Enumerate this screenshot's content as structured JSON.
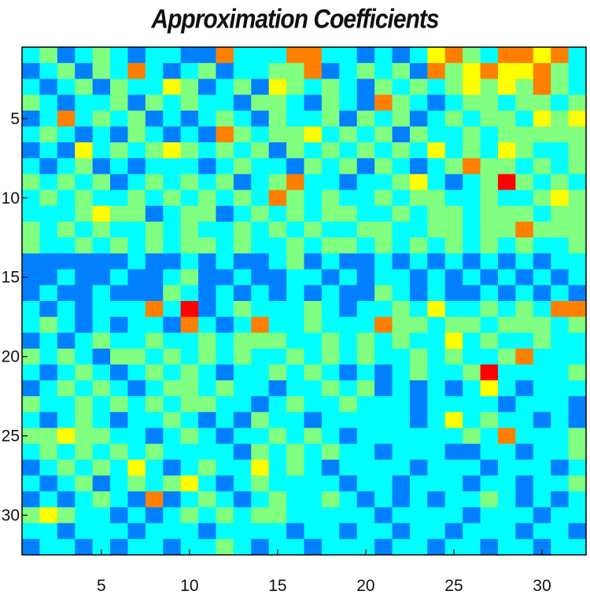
{
  "chart_data": {
    "type": "heatmap",
    "title": "Approximation Coefficients",
    "xlabel": "",
    "ylabel": "",
    "xlim": [
      0.5,
      32.5
    ],
    "ylim": [
      0.5,
      32.5
    ],
    "y_direction": "top-to-bottom",
    "x_ticks": [
      5,
      10,
      15,
      20,
      25,
      30
    ],
    "y_ticks": [
      5,
      10,
      15,
      20,
      25,
      30
    ],
    "colormap": "jet",
    "color_range": [
      0,
      8
    ],
    "grid": false,
    "legend": "none",
    "rows": 32,
    "cols": 32,
    "values": [
      [
        3,
        4,
        2,
        3,
        4,
        3,
        2,
        3,
        3,
        2,
        2,
        6,
        3,
        3,
        3,
        6,
        6,
        3,
        3,
        2,
        3,
        2,
        3,
        5,
        6,
        4,
        3,
        6,
        6,
        5,
        6,
        3
      ],
      [
        2,
        3,
        4,
        2,
        4,
        3,
        6,
        3,
        2,
        3,
        4,
        2,
        3,
        3,
        4,
        4,
        6,
        2,
        3,
        4,
        3,
        4,
        2,
        6,
        4,
        5,
        6,
        5,
        5,
        6,
        4,
        3
      ],
      [
        3,
        2,
        3,
        4,
        2,
        4,
        3,
        3,
        5,
        4,
        2,
        3,
        4,
        2,
        5,
        4,
        3,
        4,
        3,
        2,
        4,
        3,
        4,
        3,
        4,
        5,
        4,
        5,
        4,
        6,
        4,
        3
      ],
      [
        4,
        3,
        2,
        3,
        3,
        4,
        2,
        4,
        3,
        4,
        3,
        3,
        2,
        4,
        4,
        3,
        2,
        4,
        3,
        2,
        6,
        4,
        3,
        2,
        3,
        4,
        4,
        3,
        4,
        4,
        3,
        4
      ],
      [
        2,
        3,
        6,
        3,
        4,
        3,
        4,
        2,
        3,
        2,
        3,
        4,
        3,
        2,
        4,
        3,
        3,
        4,
        2,
        4,
        3,
        4,
        2,
        3,
        4,
        3,
        4,
        4,
        3,
        5,
        4,
        5
      ],
      [
        3,
        4,
        3,
        2,
        3,
        2,
        4,
        3,
        2,
        3,
        2,
        6,
        4,
        3,
        4,
        4,
        5,
        3,
        4,
        3,
        4,
        2,
        4,
        3,
        3,
        4,
        3,
        4,
        4,
        4,
        4,
        4
      ],
      [
        2,
        3,
        2,
        5,
        3,
        4,
        3,
        4,
        5,
        4,
        3,
        4,
        3,
        4,
        2,
        4,
        3,
        4,
        3,
        4,
        3,
        4,
        3,
        5,
        3,
        4,
        3,
        5,
        4,
        3,
        3,
        4
      ],
      [
        3,
        2,
        3,
        4,
        2,
        3,
        2,
        3,
        3,
        3,
        2,
        3,
        4,
        3,
        3,
        2,
        4,
        3,
        4,
        2,
        4,
        3,
        2,
        3,
        4,
        6,
        4,
        4,
        3,
        4,
        3,
        4
      ],
      [
        4,
        3,
        4,
        3,
        4,
        2,
        3,
        4,
        3,
        4,
        3,
        4,
        2,
        3,
        4,
        6,
        3,
        3,
        2,
        3,
        3,
        4,
        5,
        3,
        2,
        3,
        4,
        7,
        4,
        3,
        4,
        3
      ],
      [
        3,
        4,
        3,
        4,
        3,
        3,
        4,
        3,
        4,
        3,
        4,
        3,
        4,
        3,
        6,
        4,
        3,
        4,
        3,
        3,
        4,
        3,
        4,
        4,
        3,
        3,
        4,
        3,
        3,
        4,
        5,
        4
      ],
      [
        3,
        3,
        3,
        4,
        5,
        4,
        4,
        2,
        3,
        4,
        4,
        2,
        3,
        4,
        3,
        4,
        3,
        4,
        4,
        3,
        3,
        4,
        3,
        4,
        4,
        3,
        4,
        4,
        4,
        3,
        4,
        4
      ],
      [
        4,
        3,
        4,
        3,
        4,
        3,
        3,
        4,
        3,
        4,
        3,
        3,
        4,
        3,
        4,
        3,
        4,
        3,
        3,
        4,
        4,
        3,
        3,
        4,
        4,
        3,
        4,
        4,
        6,
        4,
        4,
        4
      ],
      [
        4,
        3,
        3,
        4,
        3,
        4,
        3,
        4,
        3,
        4,
        4,
        3,
        4,
        3,
        3,
        4,
        3,
        4,
        4,
        3,
        4,
        3,
        4,
        3,
        4,
        3,
        4,
        3,
        4,
        3,
        3,
        4
      ],
      [
        2,
        2,
        2,
        2,
        2,
        2,
        3,
        2,
        2,
        3,
        2,
        3,
        2,
        2,
        3,
        4,
        2,
        3,
        2,
        2,
        3,
        2,
        3,
        2,
        3,
        2,
        3,
        2,
        3,
        2,
        3,
        3
      ],
      [
        2,
        2,
        3,
        2,
        2,
        3,
        2,
        2,
        3,
        4,
        2,
        2,
        3,
        2,
        2,
        3,
        3,
        2,
        3,
        2,
        3,
        3,
        2,
        3,
        2,
        3,
        2,
        3,
        2,
        3,
        2,
        3
      ],
      [
        2,
        3,
        2,
        2,
        3,
        2,
        2,
        2,
        4,
        3,
        2,
        3,
        2,
        3,
        2,
        3,
        2,
        3,
        2,
        2,
        4,
        3,
        2,
        3,
        2,
        2,
        3,
        2,
        3,
        2,
        3,
        2
      ],
      [
        3,
        2,
        3,
        2,
        3,
        3,
        3,
        6,
        3,
        7,
        2,
        3,
        4,
        3,
        3,
        3,
        4,
        3,
        2,
        3,
        3,
        4,
        3,
        5,
        3,
        3,
        4,
        3,
        4,
        3,
        6,
        6
      ],
      [
        3,
        4,
        3,
        2,
        3,
        2,
        3,
        3,
        2,
        6,
        3,
        2,
        3,
        6,
        3,
        3,
        4,
        3,
        3,
        3,
        6,
        4,
        4,
        3,
        4,
        4,
        3,
        4,
        4,
        4,
        3,
        4
      ],
      [
        2,
        3,
        2,
        3,
        4,
        3,
        3,
        4,
        3,
        3,
        4,
        3,
        4,
        4,
        4,
        3,
        3,
        4,
        3,
        4,
        3,
        4,
        3,
        3,
        5,
        3,
        4,
        3,
        3,
        4,
        3,
        3
      ],
      [
        4,
        3,
        4,
        3,
        2,
        4,
        4,
        3,
        4,
        3,
        4,
        3,
        4,
        3,
        3,
        4,
        3,
        4,
        3,
        4,
        3,
        3,
        4,
        3,
        4,
        3,
        3,
        4,
        6,
        3,
        3,
        3
      ],
      [
        3,
        2,
        3,
        4,
        3,
        2,
        3,
        4,
        3,
        4,
        3,
        2,
        3,
        3,
        4,
        3,
        4,
        3,
        2,
        3,
        2,
        3,
        4,
        3,
        3,
        4,
        7,
        3,
        3,
        3,
        3,
        4
      ],
      [
        2,
        3,
        4,
        3,
        4,
        3,
        2,
        3,
        4,
        4,
        3,
        4,
        3,
        3,
        2,
        3,
        3,
        4,
        3,
        4,
        2,
        3,
        2,
        3,
        2,
        3,
        5,
        3,
        2,
        3,
        3,
        3
      ],
      [
        4,
        3,
        3,
        4,
        3,
        4,
        3,
        4,
        3,
        4,
        4,
        3,
        3,
        2,
        3,
        4,
        3,
        3,
        4,
        3,
        3,
        3,
        2,
        3,
        3,
        3,
        3,
        2,
        3,
        3,
        3,
        2
      ],
      [
        3,
        2,
        3,
        4,
        3,
        2,
        3,
        3,
        4,
        3,
        2,
        3,
        2,
        4,
        3,
        3,
        2,
        3,
        3,
        3,
        3,
        3,
        2,
        3,
        5,
        3,
        4,
        3,
        3,
        2,
        3,
        2
      ],
      [
        4,
        4,
        5,
        4,
        4,
        3,
        3,
        2,
        3,
        4,
        3,
        2,
        3,
        3,
        4,
        3,
        4,
        3,
        2,
        3,
        3,
        3,
        3,
        3,
        3,
        4,
        3,
        6,
        3,
        3,
        3,
        4
      ],
      [
        3,
        4,
        3,
        4,
        3,
        4,
        3,
        4,
        3,
        3,
        3,
        3,
        2,
        4,
        3,
        4,
        3,
        4,
        3,
        3,
        2,
        3,
        3,
        3,
        2,
        2,
        3,
        3,
        2,
        3,
        3,
        4
      ],
      [
        2,
        3,
        4,
        3,
        4,
        3,
        5,
        3,
        2,
        3,
        4,
        3,
        3,
        5,
        3,
        4,
        3,
        2,
        3,
        3,
        3,
        3,
        2,
        3,
        3,
        3,
        2,
        3,
        3,
        3,
        2,
        3
      ],
      [
        3,
        2,
        3,
        4,
        2,
        3,
        4,
        3,
        4,
        5,
        3,
        2,
        3,
        4,
        3,
        3,
        3,
        3,
        2,
        3,
        3,
        2,
        3,
        3,
        3,
        2,
        3,
        3,
        2,
        3,
        3,
        4
      ],
      [
        2,
        3,
        2,
        3,
        4,
        3,
        2,
        6,
        2,
        3,
        4,
        3,
        2,
        3,
        4,
        3,
        3,
        4,
        3,
        2,
        3,
        2,
        3,
        2,
        3,
        3,
        4,
        3,
        2,
        3,
        2,
        3
      ],
      [
        4,
        5,
        4,
        3,
        3,
        2,
        3,
        2,
        3,
        4,
        3,
        4,
        3,
        4,
        4,
        3,
        3,
        3,
        3,
        3,
        2,
        3,
        3,
        3,
        3,
        2,
        3,
        3,
        3,
        2,
        3,
        3
      ],
      [
        3,
        3,
        2,
        3,
        3,
        3,
        2,
        3,
        3,
        3,
        2,
        3,
        3,
        3,
        3,
        2,
        3,
        3,
        2,
        3,
        3,
        2,
        3,
        3,
        2,
        3,
        3,
        3,
        2,
        3,
        3,
        2
      ],
      [
        2,
        3,
        3,
        2,
        3,
        2,
        3,
        3,
        2,
        3,
        3,
        4,
        3,
        2,
        3,
        3,
        2,
        3,
        3,
        3,
        2,
        3,
        3,
        2,
        3,
        3,
        2,
        3,
        3,
        2,
        3,
        3
      ]
    ]
  }
}
